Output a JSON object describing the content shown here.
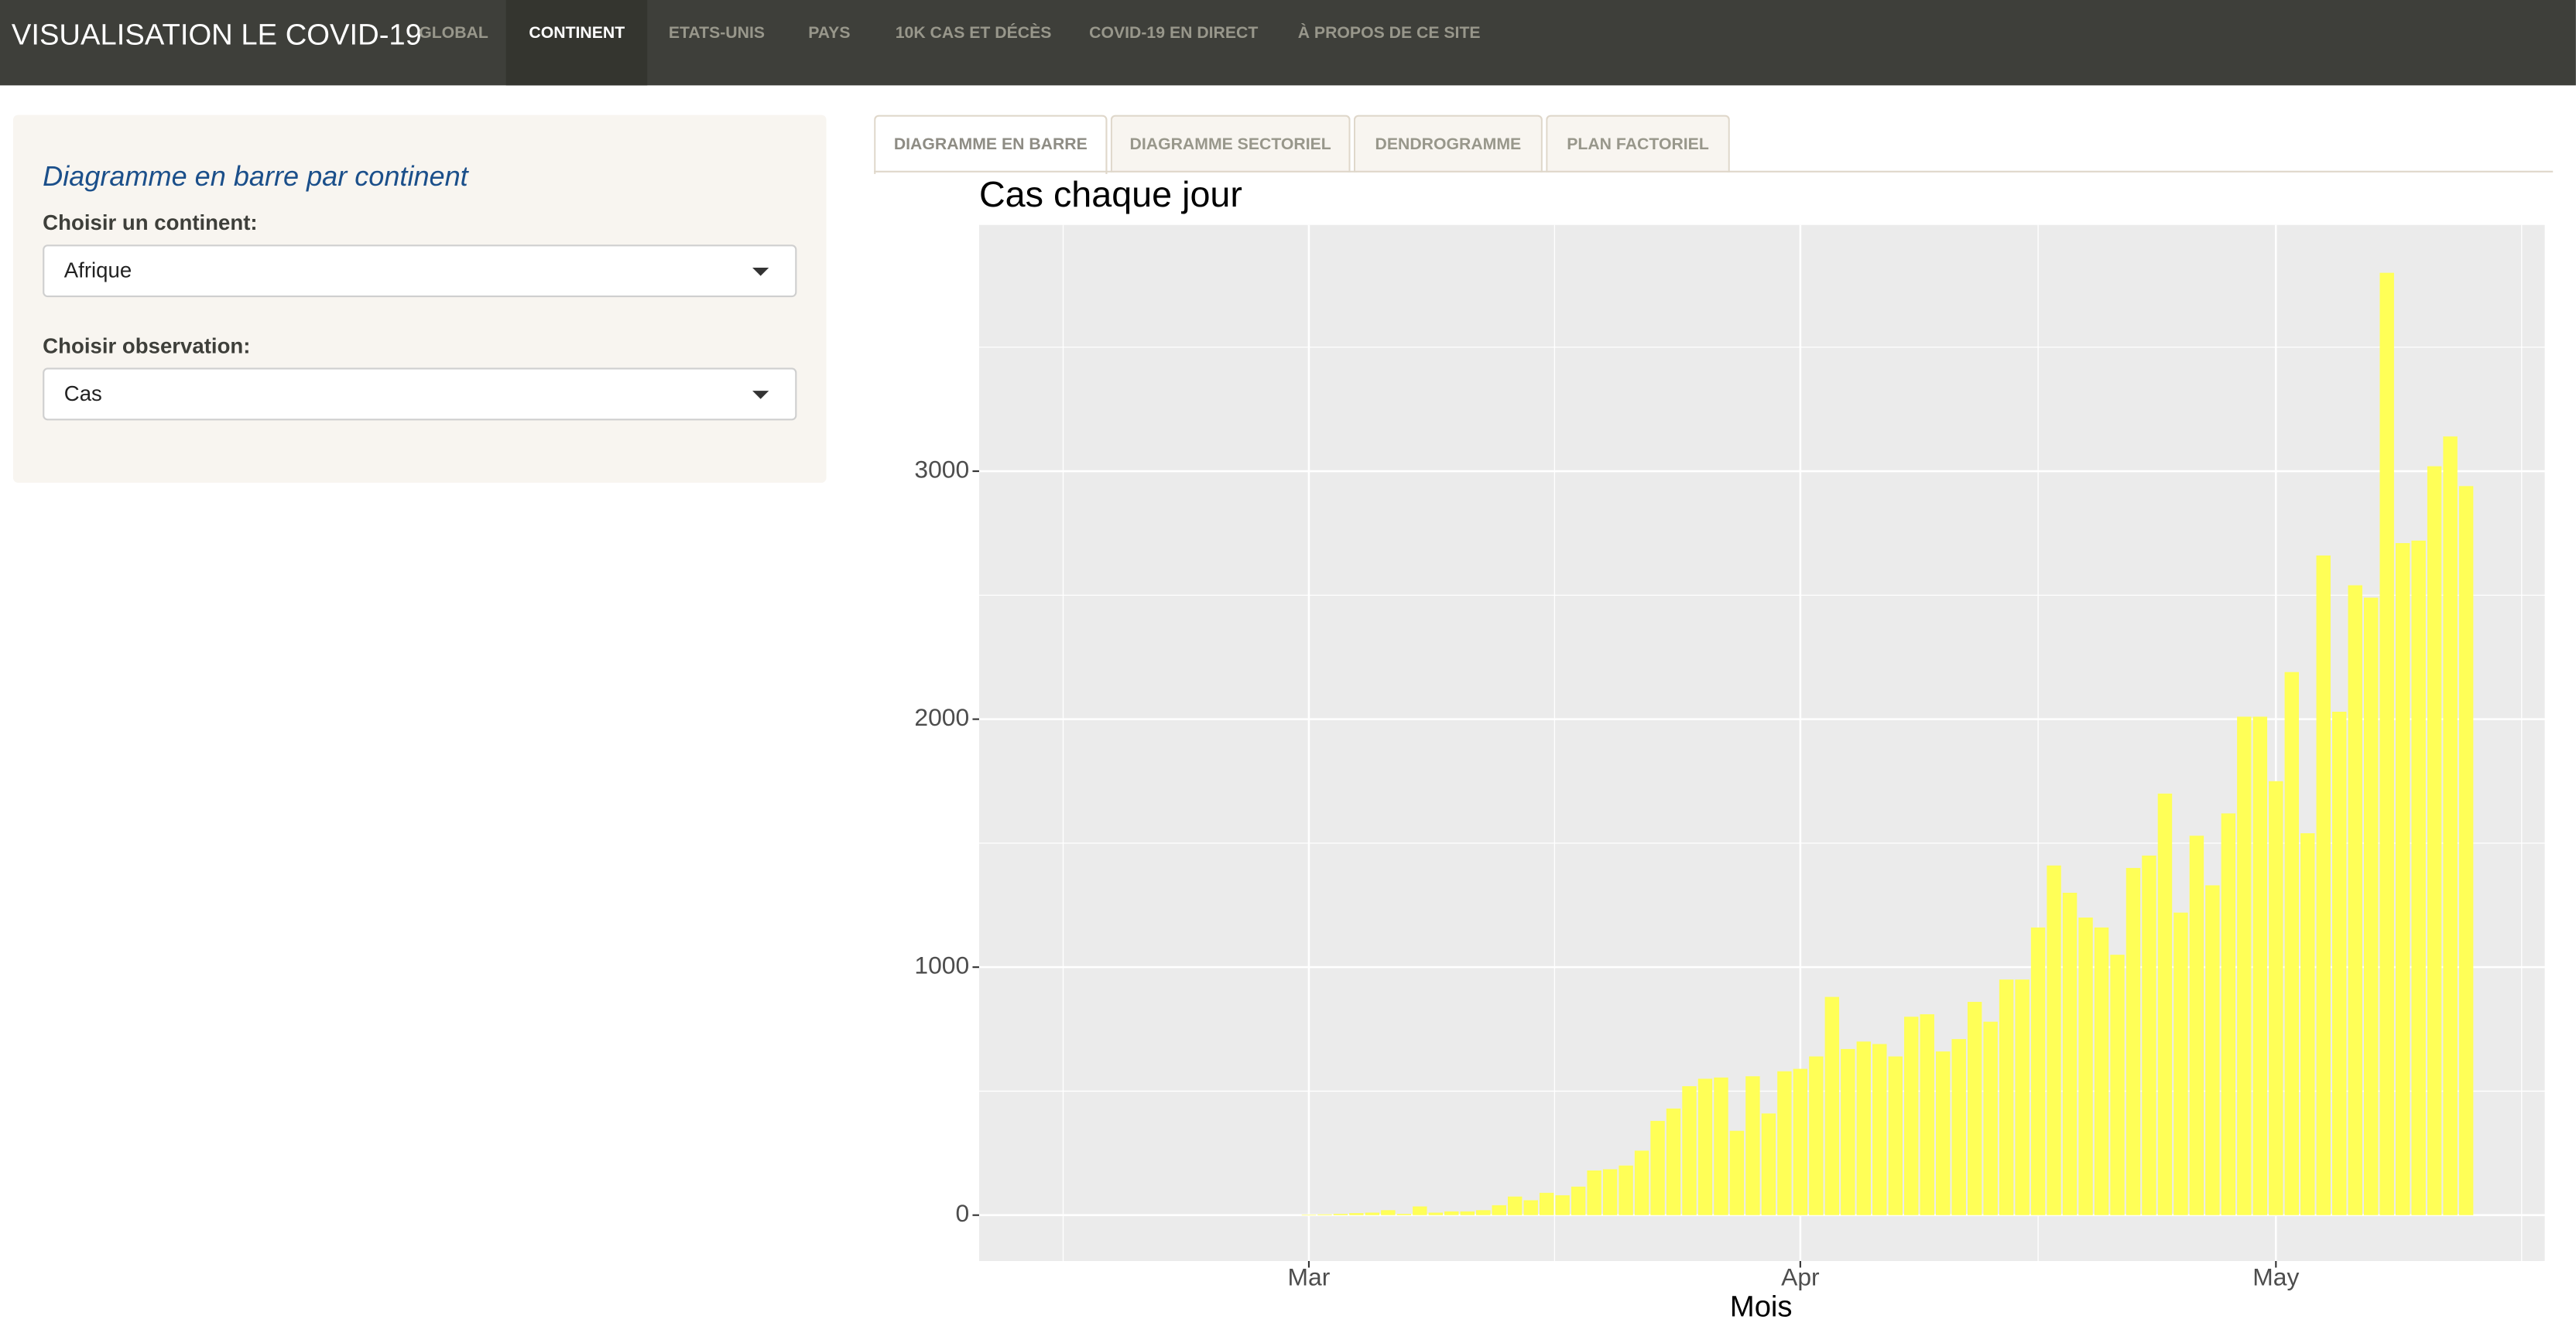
{
  "nav": {
    "brand": "VISUALISATION LE COVID-19",
    "items": [
      "GLOBAL",
      "CONTINENT",
      "ETATS-UNIS",
      "PAYS",
      "10K CAS ET DÉCÈS",
      "COVID-19 EN DIRECT",
      "À PROPOS DE CE SITE"
    ]
  },
  "sidebar": {
    "title": "Diagramme en barre par continent",
    "fields": [
      {
        "label": "Choisir un continent:",
        "value": "Afrique"
      },
      {
        "label": "Choisir observation:",
        "value": "Cas"
      }
    ]
  },
  "tabs": [
    "DIAGRAMME EN BARRE",
    "DIAGRAMME SECTORIEL",
    "DENDROGRAMME",
    "PLAN FACTORIEL"
  ],
  "chart_data": {
    "type": "bar",
    "title": "Cas chaque jour",
    "x_label": "Mois",
    "color": "#ffff57",
    "grid": true,
    "categories": [
      "Mar",
      null,
      null,
      null,
      null,
      null,
      null,
      null,
      null,
      null,
      null,
      null,
      null,
      null,
      null,
      null,
      null,
      null,
      null,
      null,
      null,
      null,
      null,
      null,
      null,
      null,
      null,
      null,
      null,
      null,
      null,
      "Apr",
      null,
      null,
      null,
      null,
      null,
      null,
      null,
      null,
      null,
      null,
      null,
      null,
      null,
      null,
      null,
      null,
      null,
      null,
      null,
      null,
      null,
      null,
      null,
      null,
      null,
      null,
      null,
      null,
      null,
      "May",
      null,
      null,
      null,
      null,
      null,
      null,
      null,
      null,
      null,
      null,
      null,
      null
    ],
    "values": [
      2,
      3,
      5,
      8,
      10,
      20,
      5,
      35,
      10,
      15,
      15,
      20,
      40,
      75,
      60,
      90,
      80,
      115,
      180,
      185,
      200,
      260,
      380,
      430,
      520,
      550,
      555,
      340,
      560,
      410,
      580,
      590,
      640,
      880,
      670,
      700,
      690,
      640,
      800,
      810,
      660,
      710,
      860,
      780,
      950,
      950,
      1160,
      1410,
      1300,
      1200,
      1160,
      1050,
      1400,
      1450,
      1700,
      1220,
      1530,
      1330,
      1620,
      2010,
      2010,
      1750,
      2190,
      1540,
      2660,
      2030,
      2540,
      2490,
      3800,
      2710,
      2720,
      3020,
      3140,
      2940
    ],
    "ylim": [
      -185,
      3993
    ],
    "yticks": [
      0,
      1000,
      2000,
      3000
    ]
  }
}
